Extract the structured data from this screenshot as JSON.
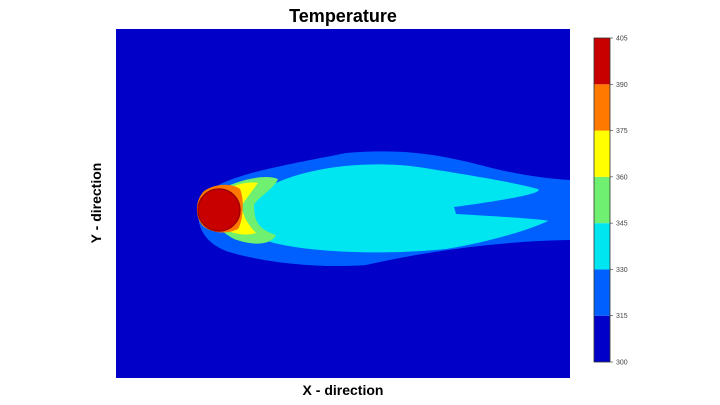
{
  "chart_data": {
    "type": "heatmap",
    "title": "Temperature",
    "xlabel": "X - direction",
    "ylabel": "Y - direction",
    "grid": false,
    "colorbar": {
      "placement": "right",
      "ticks": [
        300,
        315,
        330,
        345,
        360,
        375,
        390,
        405
      ],
      "levels": [
        {
          "min": 300,
          "max": 315,
          "color": "#0000c8"
        },
        {
          "min": 315,
          "max": 330,
          "color": "#0060ff"
        },
        {
          "min": 330,
          "max": 345,
          "color": "#00e6f0"
        },
        {
          "min": 345,
          "max": 360,
          "color": "#70f070"
        },
        {
          "min": 360,
          "max": 375,
          "color": "#ffff00"
        },
        {
          "min": 375,
          "max": 390,
          "color": "#ff7800"
        },
        {
          "min": 390,
          "max": 405,
          "color": "#c80000"
        }
      ]
    },
    "field_description_levels": {
      "background": 300,
      "plume_outer": 315,
      "plume_inner": 330,
      "near_source_1": 345,
      "near_source_2": 360,
      "near_source_3": 375,
      "source": 405
    }
  }
}
